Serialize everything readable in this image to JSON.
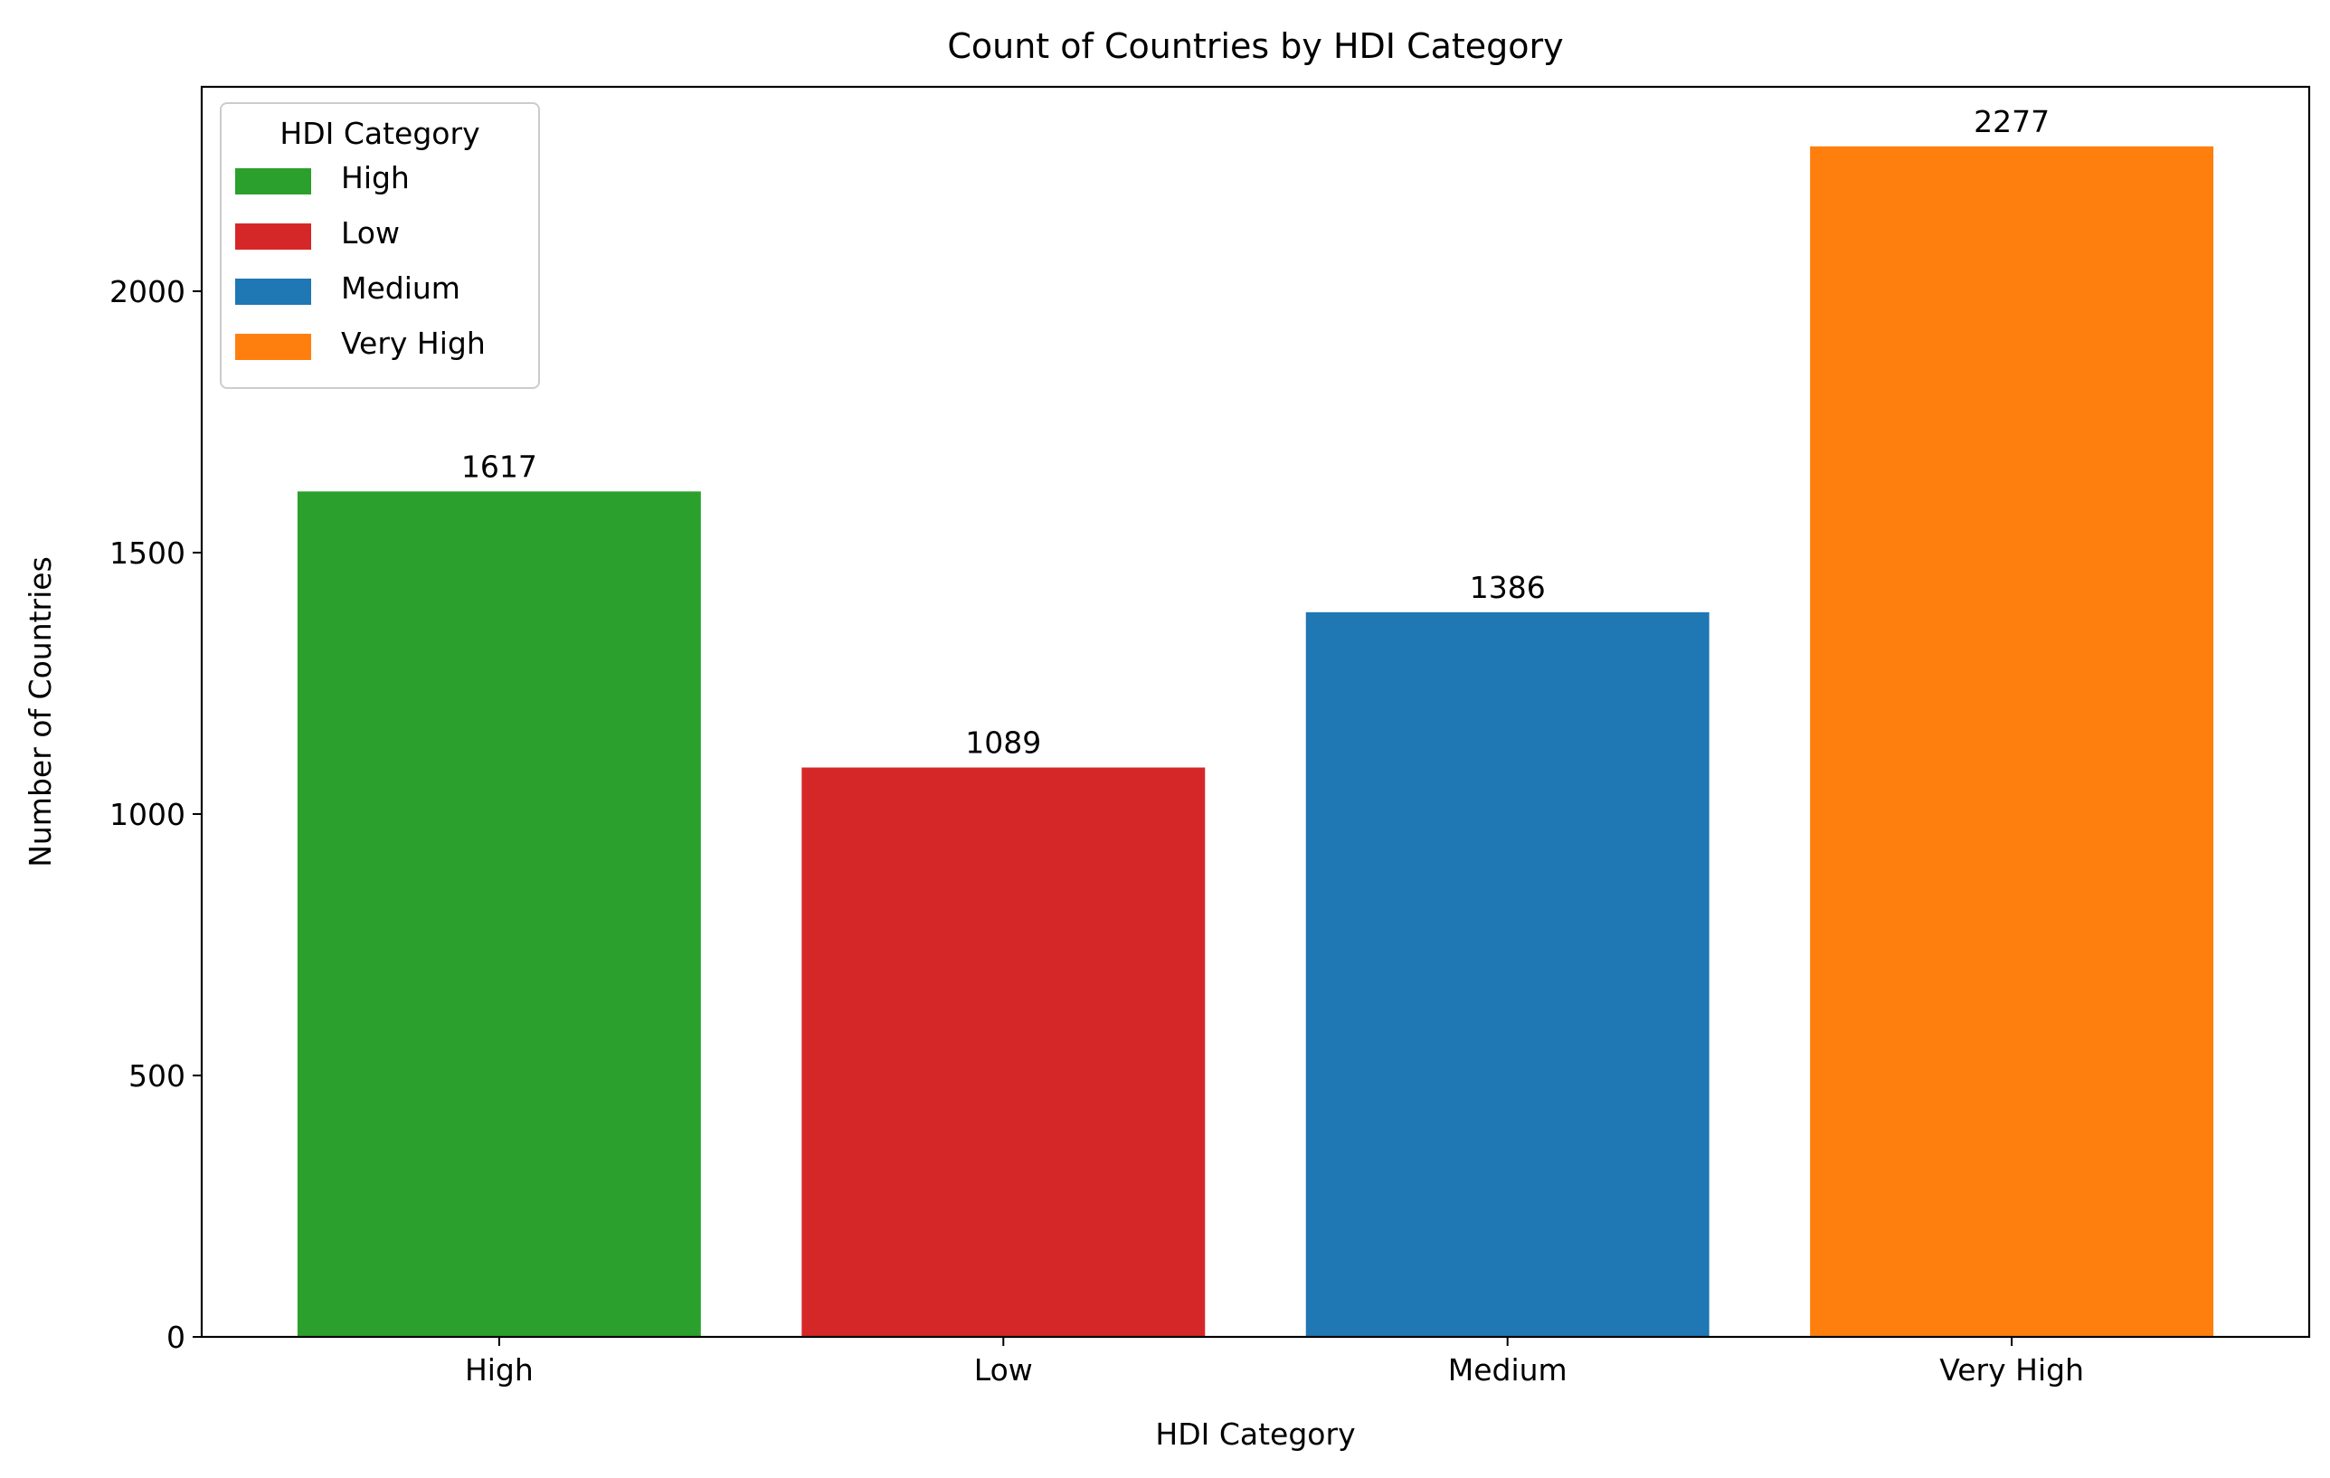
{
  "chart_data": {
    "type": "bar",
    "title": "Count of Countries by HDI Category",
    "xlabel": "HDI Category",
    "ylabel": "Number of Countries",
    "categories": [
      "High",
      "Low",
      "Medium",
      "Very High"
    ],
    "values": [
      1617,
      1089,
      1386,
      2277
    ],
    "colors": [
      "#2ca02c",
      "#d62728",
      "#1f77b4",
      "#ff7f0e"
    ],
    "ylim": [
      0,
      2390.85
    ],
    "yticks": [
      0,
      500,
      1000,
      1500,
      2000
    ],
    "grid": false,
    "legend": {
      "title": "HDI Category",
      "placement": "top-left",
      "entries": [
        "High",
        "Low",
        "Medium",
        "Very High"
      ]
    }
  }
}
